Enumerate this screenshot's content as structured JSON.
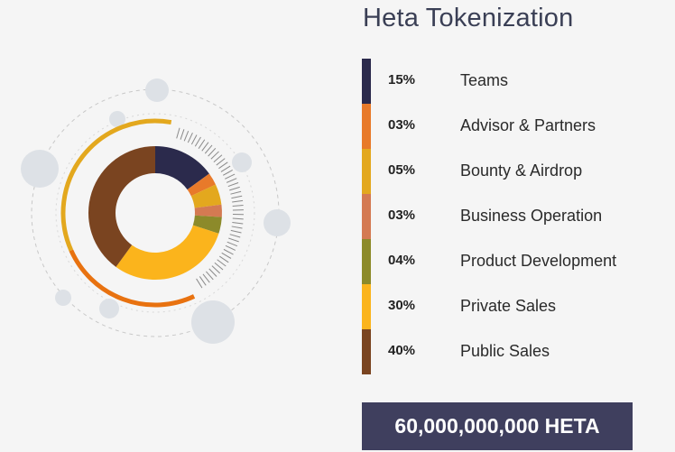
{
  "title": "Heta Tokenization",
  "total": "60,000,000,000 HETA",
  "chart_data": {
    "type": "pie",
    "categories": [
      "Teams",
      "Advisor & Partners",
      "Bounty & Airdrop",
      "Business Operation",
      "Product Development",
      "Private Sales",
      "Public Sales"
    ],
    "labels": [
      "15%",
      "03%",
      "05%",
      "03%",
      "04%",
      "30%",
      "40%"
    ],
    "values": [
      15,
      3,
      5,
      3,
      4,
      30,
      40
    ],
    "colors": [
      "#2b2a4c",
      "#e87a2a",
      "#e3a81e",
      "#d47a52",
      "#8c8a2a",
      "#fbb41c",
      "#7a4420"
    ]
  }
}
